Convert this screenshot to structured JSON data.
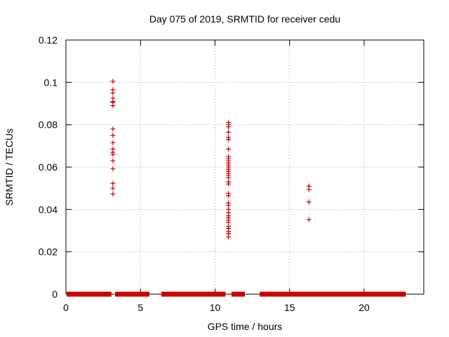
{
  "chart_data": {
    "type": "scatter",
    "title": "Day 075 of 2019, SRMTID for receiver cedu",
    "xlabel": "GPS time / hours",
    "ylabel": "SRMTID / TECUs",
    "xlim": [
      0,
      24
    ],
    "ylim": [
      0,
      0.12
    ],
    "xticks": [
      0,
      5,
      10,
      15,
      20
    ],
    "xtick_labels": [
      "0",
      "5",
      "10",
      "15",
      "20"
    ],
    "yticks": [
      0,
      0.02,
      0.04,
      0.06,
      0.08,
      0.1,
      0.12
    ],
    "ytick_labels": [
      "0",
      "0.02",
      "0.04",
      "0.06",
      "0.08",
      "0.1",
      "0.12"
    ],
    "grid": true,
    "marker": "+",
    "series": [
      {
        "name": "SRMTID",
        "color": "#cc0000",
        "points": [
          [
            3.15,
            0.1005
          ],
          [
            3.15,
            0.0965
          ],
          [
            3.15,
            0.095
          ],
          [
            3.15,
            0.0925
          ],
          [
            3.15,
            0.091
          ],
          [
            3.15,
            0.0905
          ],
          [
            3.15,
            0.089
          ],
          [
            3.15,
            0.078
          ],
          [
            3.15,
            0.075
          ],
          [
            3.15,
            0.0715
          ],
          [
            3.15,
            0.0685
          ],
          [
            3.15,
            0.067
          ],
          [
            3.15,
            0.066
          ],
          [
            3.15,
            0.063
          ],
          [
            3.15,
            0.0592
          ],
          [
            3.15,
            0.0523
          ],
          [
            3.15,
            0.05
          ],
          [
            3.15,
            0.0473
          ],
          [
            10.9,
            0.081
          ],
          [
            10.9,
            0.08
          ],
          [
            10.9,
            0.079
          ],
          [
            10.9,
            0.0765
          ],
          [
            10.9,
            0.074
          ],
          [
            10.9,
            0.073
          ],
          [
            10.9,
            0.0685
          ],
          [
            10.9,
            0.065
          ],
          [
            10.9,
            0.064
          ],
          [
            10.9,
            0.063
          ],
          [
            10.9,
            0.062
          ],
          [
            10.9,
            0.061
          ],
          [
            10.9,
            0.06
          ],
          [
            10.9,
            0.059
          ],
          [
            10.9,
            0.058
          ],
          [
            10.9,
            0.057
          ],
          [
            10.9,
            0.056
          ],
          [
            10.9,
            0.055
          ],
          [
            10.9,
            0.053
          ],
          [
            10.9,
            0.052
          ],
          [
            10.9,
            0.0475
          ],
          [
            10.9,
            0.0465
          ],
          [
            10.9,
            0.043
          ],
          [
            10.9,
            0.042
          ],
          [
            10.9,
            0.04
          ],
          [
            10.9,
            0.0385
          ],
          [
            10.9,
            0.037
          ],
          [
            10.9,
            0.036
          ],
          [
            10.9,
            0.035
          ],
          [
            10.9,
            0.034
          ],
          [
            10.9,
            0.032
          ],
          [
            10.9,
            0.031
          ],
          [
            10.9,
            0.0295
          ],
          [
            10.9,
            0.0285
          ],
          [
            10.9,
            0.027
          ],
          [
            16.3,
            0.051
          ],
          [
            16.3,
            0.0495
          ],
          [
            16.3,
            0.0435
          ],
          [
            16.3,
            0.0352
          ]
        ],
        "zero_segments": [
          [
            0.05,
            3.05
          ],
          [
            3.3,
            5.6
          ],
          [
            6.4,
            10.7
          ],
          [
            11.1,
            12.0
          ],
          [
            13.0,
            22.8
          ]
        ]
      }
    ]
  }
}
